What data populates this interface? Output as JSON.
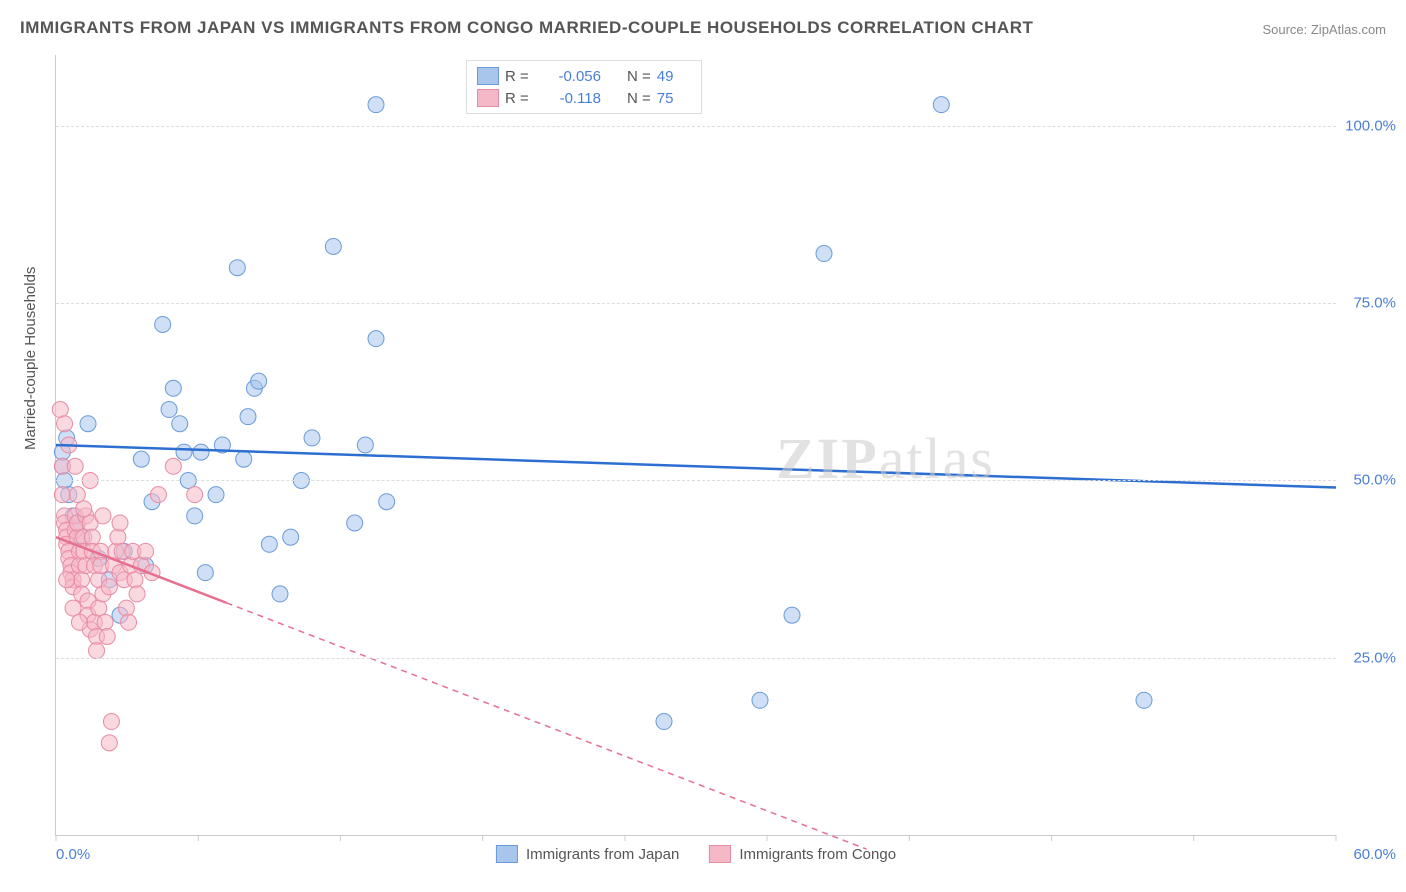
{
  "title": "IMMIGRANTS FROM JAPAN VS IMMIGRANTS FROM CONGO MARRIED-COUPLE HOUSEHOLDS CORRELATION CHART",
  "source": "Source: ZipAtlas.com",
  "ylabel": "Married-couple Households",
  "watermark_a": "ZIP",
  "watermark_b": "atlas",
  "chart": {
    "type": "scatter",
    "background_color": "#ffffff",
    "grid_color": "#dddddd",
    "border_color": "#cccccc",
    "xlim": [
      0,
      60
    ],
    "ylim": [
      0,
      110
    ],
    "y_ticks": [
      25,
      50,
      75,
      100
    ],
    "y_tick_labels": [
      "25.0%",
      "50.0%",
      "75.0%",
      "100.0%"
    ],
    "x_tick_labels": {
      "left": "0.0%",
      "right": "60.0%"
    },
    "x_minor_ticks": [
      0,
      6.67,
      13.33,
      20,
      26.67,
      33.33,
      40,
      46.67,
      53.33,
      60
    ],
    "y_tick_color": "#4a7fd6",
    "x_tick_color": "#4a7fd6",
    "marker_radius": 8,
    "marker_opacity": 0.55,
    "line_width": 2.5,
    "series": [
      {
        "name": "Immigrants from Japan",
        "color_fill": "#a8c5ec",
        "color_stroke": "#6a9bd8",
        "line_color": "#2c6fd0",
        "R": "-0.056",
        "N": "49",
        "trend": {
          "x1": 0,
          "y1": 55,
          "x2": 60,
          "y2": 49,
          "solid_until_x": 60
        },
        "points": [
          [
            0.3,
            52
          ],
          [
            0.3,
            54
          ],
          [
            0.4,
            50
          ],
          [
            0.5,
            56
          ],
          [
            0.6,
            48
          ],
          [
            0.8,
            45
          ],
          [
            1.0,
            44
          ],
          [
            1.2,
            42
          ],
          [
            1.5,
            58
          ],
          [
            2.0,
            39
          ],
          [
            2.5,
            36
          ],
          [
            3.2,
            40
          ],
          [
            4.0,
            53
          ],
          [
            4.5,
            47
          ],
          [
            5.0,
            72
          ],
          [
            5.5,
            63
          ],
          [
            5.8,
            58
          ],
          [
            6.0,
            54
          ],
          [
            6.2,
            50
          ],
          [
            6.5,
            45
          ],
          [
            7.0,
            37
          ],
          [
            7.5,
            48
          ],
          [
            7.8,
            55
          ],
          [
            8.5,
            80
          ],
          [
            8.8,
            53
          ],
          [
            9.0,
            59
          ],
          [
            9.3,
            63
          ],
          [
            9.5,
            64
          ],
          [
            10.0,
            41
          ],
          [
            10.5,
            34
          ],
          [
            11.0,
            42
          ],
          [
            11.5,
            50
          ],
          [
            13.0,
            83
          ],
          [
            14.0,
            44
          ],
          [
            14.5,
            55
          ],
          [
            15.0,
            103
          ],
          [
            15.0,
            70
          ],
          [
            15.5,
            47
          ],
          [
            28.5,
            16
          ],
          [
            33.0,
            19
          ],
          [
            34.5,
            31
          ],
          [
            36.0,
            82
          ],
          [
            41.5,
            103
          ],
          [
            3.0,
            31
          ],
          [
            4.2,
            38
          ],
          [
            5.3,
            60
          ],
          [
            51.0,
            19
          ],
          [
            12.0,
            56
          ],
          [
            6.8,
            54
          ]
        ]
      },
      {
        "name": "Immigrants from Congo",
        "color_fill": "#f5b8c6",
        "color_stroke": "#e88ba4",
        "line_color": "#e76f8f",
        "R": "-0.118",
        "N": "75",
        "trend": {
          "x1": 0,
          "y1": 42,
          "x2": 38,
          "y2": -2,
          "solid_until_x": 8
        },
        "points": [
          [
            0.2,
            60
          ],
          [
            0.3,
            52
          ],
          [
            0.3,
            48
          ],
          [
            0.4,
            45
          ],
          [
            0.4,
            44
          ],
          [
            0.5,
            43
          ],
          [
            0.5,
            42
          ],
          [
            0.5,
            41
          ],
          [
            0.6,
            40
          ],
          [
            0.6,
            39
          ],
          [
            0.7,
            38
          ],
          [
            0.7,
            37
          ],
          [
            0.8,
            36
          ],
          [
            0.8,
            35
          ],
          [
            0.9,
            43
          ],
          [
            0.9,
            45
          ],
          [
            1.0,
            42
          ],
          [
            1.0,
            44
          ],
          [
            1.1,
            40
          ],
          [
            1.1,
            38
          ],
          [
            1.2,
            36
          ],
          [
            1.2,
            34
          ],
          [
            1.3,
            42
          ],
          [
            1.3,
            40
          ],
          [
            1.4,
            38
          ],
          [
            1.4,
            45
          ],
          [
            1.5,
            33
          ],
          [
            1.5,
            31
          ],
          [
            1.6,
            29
          ],
          [
            1.6,
            44
          ],
          [
            1.7,
            42
          ],
          [
            1.7,
            40
          ],
          [
            1.8,
            38
          ],
          [
            1.8,
            30
          ],
          [
            1.9,
            28
          ],
          [
            1.9,
            26
          ],
          [
            2.0,
            32
          ],
          [
            2.0,
            36
          ],
          [
            2.1,
            40
          ],
          [
            2.1,
            38
          ],
          [
            2.2,
            34
          ],
          [
            2.3,
            30
          ],
          [
            2.4,
            28
          ],
          [
            2.5,
            35
          ],
          [
            2.5,
            13
          ],
          [
            2.6,
            16
          ],
          [
            2.7,
            38
          ],
          [
            2.8,
            40
          ],
          [
            2.9,
            42
          ],
          [
            3.0,
            37
          ],
          [
            3.0,
            44
          ],
          [
            3.1,
            40
          ],
          [
            3.2,
            36
          ],
          [
            3.3,
            32
          ],
          [
            3.4,
            30
          ],
          [
            3.5,
            38
          ],
          [
            3.6,
            40
          ],
          [
            3.7,
            36
          ],
          [
            3.8,
            34
          ],
          [
            4.0,
            38
          ],
          [
            4.2,
            40
          ],
          [
            4.5,
            37
          ],
          [
            4.8,
            48
          ],
          [
            5.5,
            52
          ],
          [
            6.5,
            48
          ],
          [
            1.0,
            48
          ],
          [
            0.4,
            58
          ],
          [
            0.6,
            55
          ],
          [
            0.9,
            52
          ],
          [
            1.3,
            46
          ],
          [
            1.6,
            50
          ],
          [
            2.2,
            45
          ],
          [
            0.5,
            36
          ],
          [
            0.8,
            32
          ],
          [
            1.1,
            30
          ]
        ]
      }
    ]
  },
  "legend": {
    "r_label": "R =",
    "n_label": "N ="
  },
  "bottom_legend": [
    "Immigrants from Japan",
    "Immigrants from Congo"
  ]
}
